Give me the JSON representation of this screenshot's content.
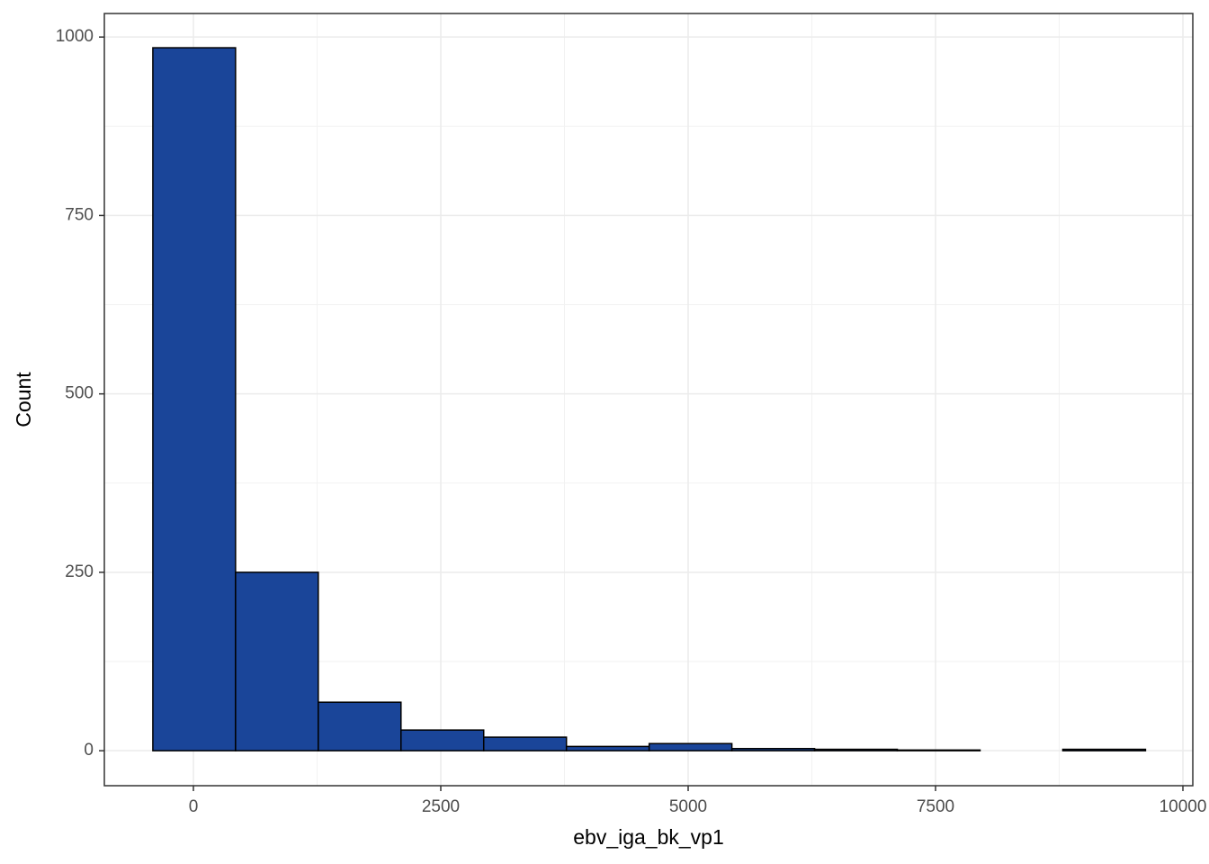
{
  "chart_data": {
    "type": "histogram",
    "x_label": "ebv_iga_bk_vp1",
    "y_label": "Count",
    "bins": [
      -410,
      426,
      1262,
      2098,
      2934,
      3770,
      4606,
      5442,
      6278,
      7114,
      7950,
      8786,
      9622
    ],
    "values": [
      985,
      250,
      68,
      29,
      19,
      6,
      10,
      3,
      2,
      1,
      0,
      2
    ],
    "color": "#1a4599",
    "edgecolor": "#000000",
    "xlim": [
      -900,
      10100
    ],
    "ylim": [
      -49,
      1033
    ],
    "xticks": [
      0,
      2500,
      5000,
      7500,
      10000
    ],
    "yticks": [
      0,
      250,
      500,
      750,
      1000
    ],
    "grid": true
  }
}
